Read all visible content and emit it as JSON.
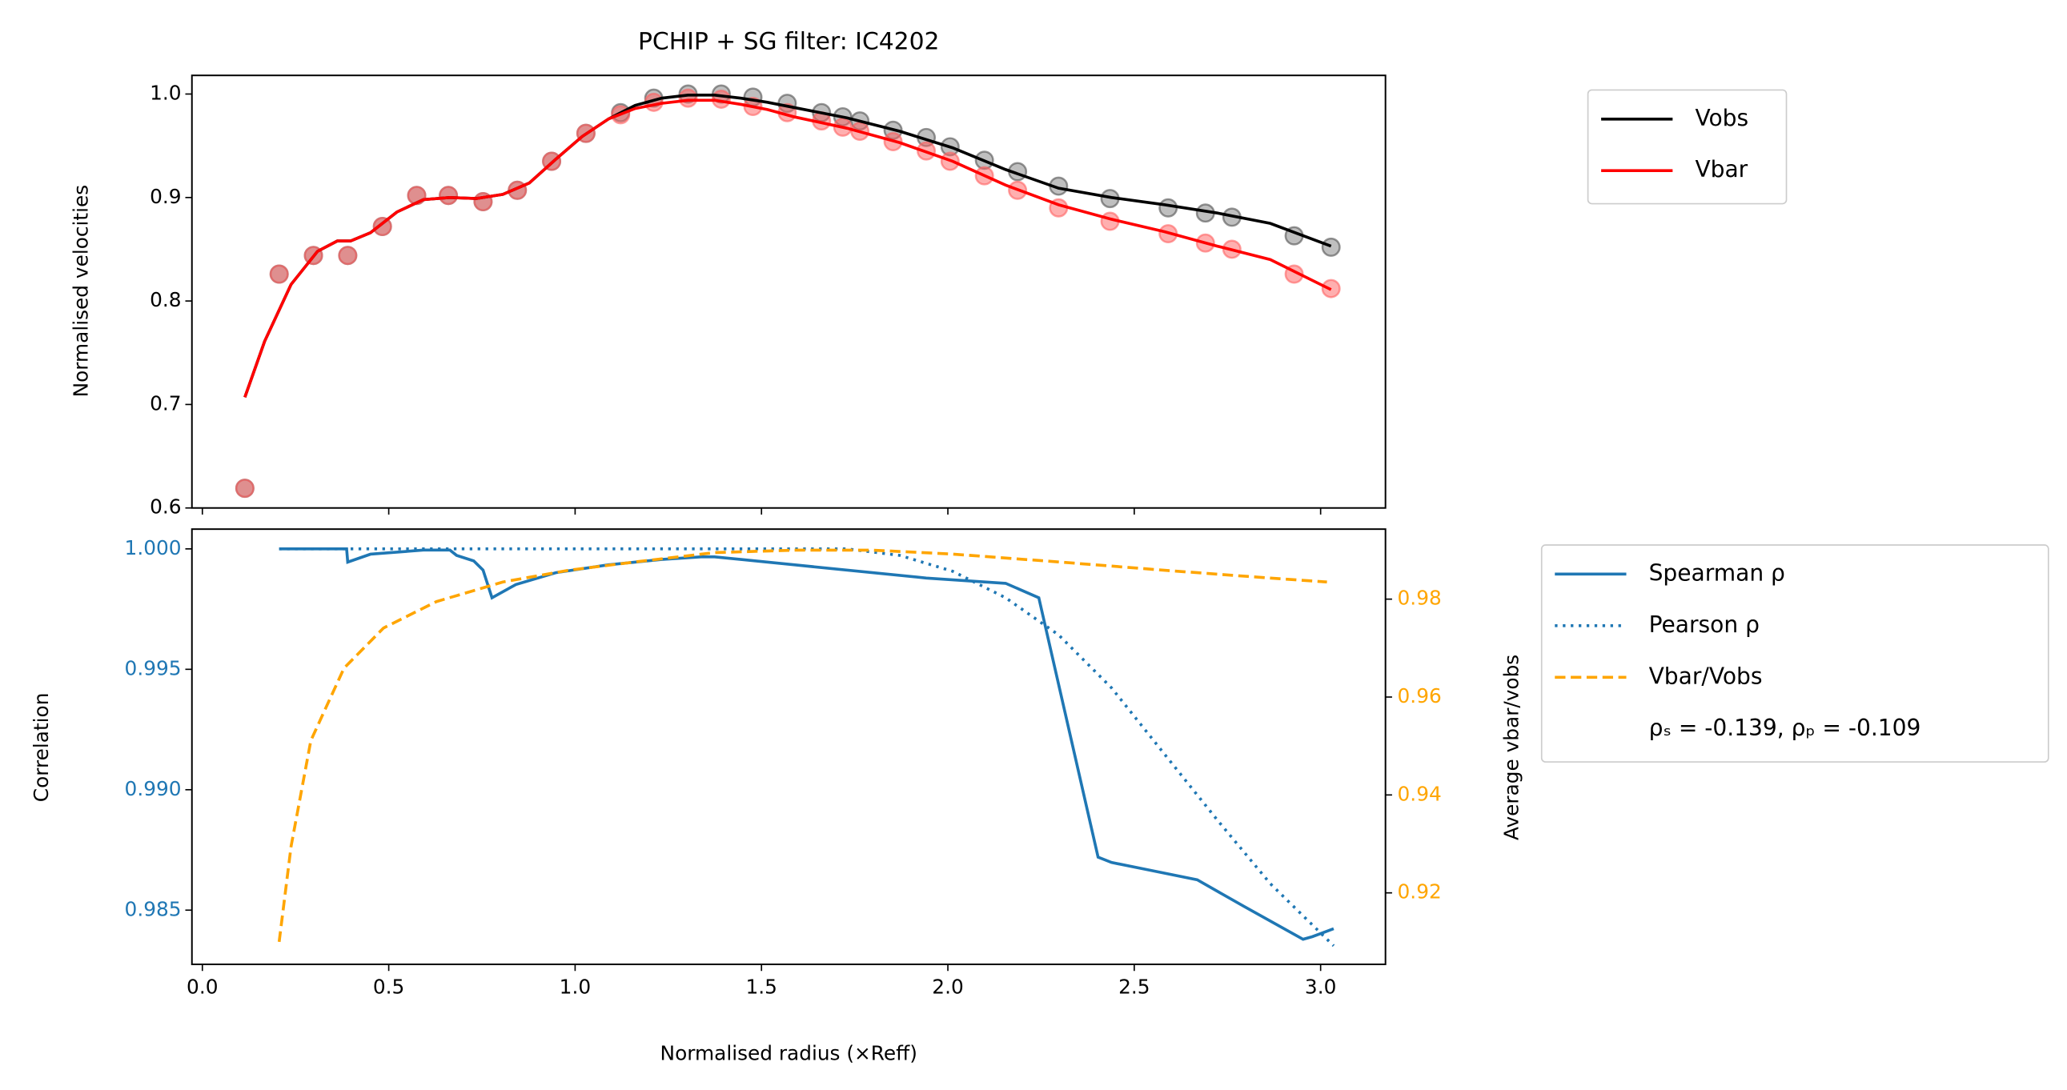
{
  "chart_data": [
    {
      "type": "line",
      "title": "PCHIP + SG filter: IC4202",
      "ylabel": "Normalised velocities",
      "xlim": [
        -0.028,
        3.174
      ],
      "ylim": [
        0.6,
        1.018
      ],
      "xticks": [
        0,
        0.5,
        1,
        1.5,
        2,
        2.5,
        3
      ],
      "xtick_labels": false,
      "yticks": [
        0.6,
        0.7,
        0.8,
        0.9,
        {
          "value": 1,
          "label": "1.0"
        }
      ],
      "series": [
        {
          "kind": "scatter",
          "color": "#808080",
          "edge": "#505050",
          "x": [
            0.114,
            0.206,
            0.298,
            0.39,
            0.483,
            0.575,
            0.66,
            0.753,
            0.845,
            0.937,
            1.029,
            1.122,
            1.211,
            1.303,
            1.392,
            1.477,
            1.569,
            1.661,
            1.718,
            1.764,
            1.853,
            1.942,
            2.006,
            2.098,
            2.187,
            2.297,
            2.435,
            2.591,
            2.691,
            2.762,
            2.929,
            3.028
          ],
          "values": [
            0.619,
            0.826,
            0.844,
            0.844,
            0.872,
            0.902,
            0.902,
            0.896,
            0.907,
            0.935,
            0.962,
            0.982,
            0.996,
            1.0,
            1.0,
            0.997,
            0.991,
            0.982,
            0.978,
            0.974,
            0.965,
            0.958,
            0.949,
            0.936,
            0.925,
            0.911,
            0.899,
            0.89,
            0.885,
            0.881,
            0.863,
            0.852
          ]
        },
        {
          "kind": "scatter",
          "color": "#ff6060",
          "edge": "#ff6060",
          "x": [
            0.114,
            0.206,
            0.298,
            0.39,
            0.483,
            0.575,
            0.66,
            0.753,
            0.845,
            0.937,
            1.029,
            1.122,
            1.211,
            1.303,
            1.392,
            1.477,
            1.569,
            1.661,
            1.718,
            1.764,
            1.853,
            1.942,
            2.006,
            2.098,
            2.187,
            2.297,
            2.435,
            2.591,
            2.691,
            2.762,
            2.929,
            3.028
          ],
          "values": [
            0.619,
            0.826,
            0.844,
            0.844,
            0.872,
            0.902,
            0.902,
            0.896,
            0.907,
            0.935,
            0.962,
            0.98,
            0.992,
            0.996,
            0.995,
            0.988,
            0.982,
            0.974,
            0.968,
            0.964,
            0.954,
            0.945,
            0.935,
            0.921,
            0.907,
            0.89,
            0.877,
            0.865,
            0.856,
            0.85,
            0.826,
            0.812
          ]
        },
        {
          "kind": "line",
          "name": "Vobs",
          "color": "#000000",
          "linestyle": "solid",
          "x": [
            0.114,
            0.167,
            0.238,
            0.309,
            0.362,
            0.398,
            0.451,
            0.522,
            0.593,
            0.664,
            0.735,
            0.806,
            0.877,
            0.948,
            1.019,
            1.09,
            1.161,
            1.232,
            1.303,
            1.374,
            1.445,
            1.516,
            1.587,
            1.729,
            1.871,
            2.013,
            2.155,
            2.297,
            2.439,
            2.581,
            2.723,
            2.865,
            3.028
          ],
          "values": [
            0.707,
            0.761,
            0.816,
            0.848,
            0.858,
            0.858,
            0.866,
            0.886,
            0.898,
            0.9,
            0.899,
            0.903,
            0.914,
            0.937,
            0.959,
            0.976,
            0.989,
            0.996,
            0.999,
            0.999,
            0.996,
            0.992,
            0.987,
            0.977,
            0.964,
            0.948,
            0.927,
            0.909,
            0.9,
            0.893,
            0.885,
            0.875,
            0.853
          ]
        },
        {
          "kind": "line",
          "name": "Vbar",
          "color": "#ff0000",
          "linestyle": "solid",
          "x": [
            0.114,
            0.167,
            0.238,
            0.309,
            0.362,
            0.398,
            0.451,
            0.522,
            0.593,
            0.664,
            0.735,
            0.806,
            0.877,
            0.948,
            1.019,
            1.09,
            1.161,
            1.232,
            1.303,
            1.374,
            1.445,
            1.516,
            1.587,
            1.729,
            1.871,
            2.013,
            2.155,
            2.297,
            2.439,
            2.581,
            2.723,
            2.865,
            3.028
          ],
          "values": [
            0.707,
            0.761,
            0.816,
            0.848,
            0.858,
            0.858,
            0.866,
            0.886,
            0.898,
            0.9,
            0.899,
            0.903,
            0.914,
            0.937,
            0.959,
            0.976,
            0.986,
            0.991,
            0.994,
            0.994,
            0.99,
            0.985,
            0.978,
            0.967,
            0.953,
            0.935,
            0.912,
            0.893,
            0.879,
            0.867,
            0.853,
            0.84,
            0.811
          ]
        }
      ]
    },
    {
      "type": "line",
      "xlabel": "Normalised radius (×Reff)",
      "ylabel": "Correlation",
      "y2label": "Average vbar/vobs",
      "xlim": [
        -0.028,
        3.174
      ],
      "ylim": [
        0.98275,
        1.00082
      ],
      "y2lim": [
        0.9054,
        0.9943
      ],
      "xticks": [
        {
          "value": 0,
          "label": "0.0"
        },
        0.5,
        {
          "value": 1,
          "label": "1.0"
        },
        1.5,
        {
          "value": 2,
          "label": "2.0"
        },
        2.5,
        {
          "value": 3,
          "label": "3.0"
        }
      ],
      "xtick_labels": true,
      "yticks": [
        0.985,
        {
          "value": 0.99,
          "label": "0.990"
        },
        0.995,
        {
          "value": 1,
          "label": "1.000"
        }
      ],
      "ytick_color": "#1f77b4",
      "y2ticks": [
        0.92,
        0.94,
        0.96,
        0.98
      ],
      "y2tick_color": "#ffa500",
      "series": [
        {
          "kind": "line",
          "name": "Spearman ρ",
          "color": "#1f77b4",
          "linestyle": "solid",
          "x": [
            0.206,
            0.387,
            0.39,
            0.451,
            0.593,
            0.664,
            0.682,
            0.728,
            0.753,
            0.777,
            0.841,
            0.948,
            1.09,
            1.232,
            1.338,
            1.374,
            1.445,
            1.587,
            1.942,
            2.155,
            2.244,
            2.403,
            2.439,
            2.545,
            2.669,
            2.794,
            2.953,
            2.978,
            3.035
          ],
          "values": [
            1.0,
            1.0,
            0.99945,
            0.99978,
            0.99995,
            0.99995,
            0.99973,
            0.9995,
            0.99912,
            0.99797,
            0.99852,
            0.99901,
            0.99934,
            0.99956,
            0.99967,
            0.99967,
            0.99956,
            0.99934,
            0.99879,
            0.99857,
            0.99797,
            0.9872,
            0.98698,
            0.98665,
            0.98626,
            0.98516,
            0.98379,
            0.9839,
            0.98423
          ]
        },
        {
          "kind": "line",
          "name": "Pearson ρ",
          "color": "#1f77b4",
          "linestyle": "dotted",
          "x": [
            0.206,
            1.729,
            1.871,
            2.013,
            2.155,
            2.297,
            2.439,
            2.581,
            2.723,
            2.865,
            3.035
          ],
          "values": [
            1.0,
            1.0,
            0.99973,
            0.99907,
            0.99797,
            0.99643,
            0.99423,
            0.99148,
            0.98874,
            0.9861,
            0.98352
          ]
        },
        {
          "kind": "line",
          "name": "Vbar/Vobs",
          "color": "#ffa500",
          "linestyle": "dashed",
          "axis": "y2",
          "x": [
            0.206,
            0.238,
            0.291,
            0.38,
            0.486,
            0.628,
            0.806,
            0.983,
            1.161,
            1.374,
            1.587,
            1.8,
            2.013,
            2.297,
            2.581,
            2.865,
            3.017
          ],
          "values": [
            0.91,
            0.9295,
            0.9511,
            0.9659,
            0.9741,
            0.9795,
            0.9835,
            0.9859,
            0.9876,
            0.9895,
            0.99,
            0.99,
            0.9892,
            0.9876,
            0.9859,
            0.9843,
            0.9835
          ]
        }
      ],
      "annotation": "ρₛ = -0.139, ρₚ = -0.109"
    }
  ]
}
